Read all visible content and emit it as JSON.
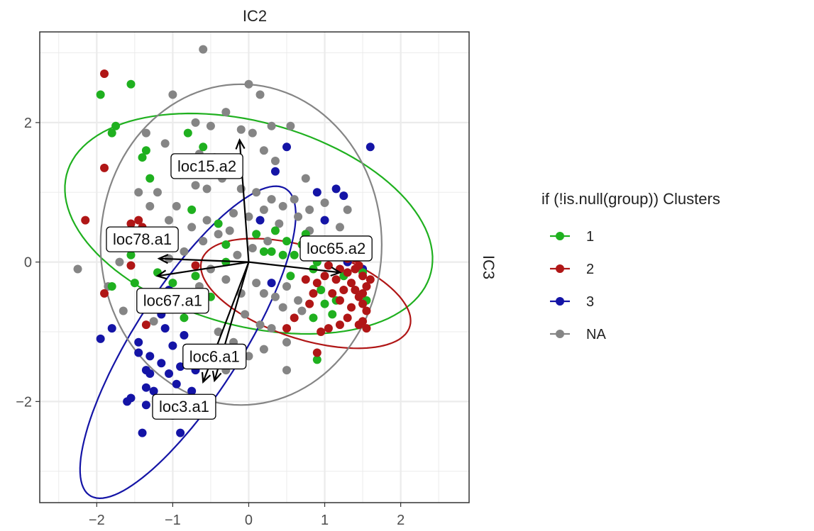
{
  "chart_data": {
    "type": "scatter",
    "title": "",
    "xlabel": "IC2",
    "ylabel": "IC3",
    "xlim": [
      -2.75,
      2.9
    ],
    "ylim": [
      -3.45,
      3.3
    ],
    "x_ticks": [
      -2,
      -1,
      0,
      1,
      2
    ],
    "y_ticks": [
      -2,
      0,
      2
    ],
    "grid": true,
    "legend": {
      "title": "if (!is.null(group)) Clusters",
      "position": "right",
      "entries": [
        {
          "label": "1",
          "color": "#1fb01f"
        },
        {
          "label": "2",
          "color": "#b01616"
        },
        {
          "label": "3",
          "color": "#1414a6"
        },
        {
          "label": "NA",
          "color": "#858585"
        }
      ]
    },
    "series": [
      {
        "name": "1",
        "color": "#1fb01f",
        "points": [
          [
            -1.95,
            2.4
          ],
          [
            -1.8,
            1.85
          ],
          [
            -1.75,
            1.95
          ],
          [
            -1.55,
            2.55
          ],
          [
            -1.35,
            1.6
          ],
          [
            -1.3,
            1.2
          ],
          [
            -1.4,
            1.5
          ],
          [
            -0.8,
            1.85
          ],
          [
            -0.6,
            1.65
          ],
          [
            -0.5,
            1.3
          ],
          [
            -0.9,
            1.25
          ],
          [
            -0.75,
            0.75
          ],
          [
            -1.0,
            0.3
          ],
          [
            -0.7,
            -0.2
          ],
          [
            -0.4,
            0.55
          ],
          [
            -0.3,
            0.25
          ],
          [
            0.1,
            0.4
          ],
          [
            0.3,
            0.15
          ],
          [
            0.45,
            0.1
          ],
          [
            0.5,
            0.3
          ],
          [
            0.7,
            0.25
          ],
          [
            0.8,
            0.25
          ],
          [
            0.6,
            0.1
          ],
          [
            0.9,
            0.0
          ],
          [
            0.85,
            -0.1
          ],
          [
            0.95,
            -0.4
          ],
          [
            1.0,
            -0.6
          ],
          [
            1.1,
            -0.75
          ],
          [
            1.15,
            -0.55
          ],
          [
            0.85,
            -0.8
          ],
          [
            0.9,
            -1.4
          ],
          [
            1.5,
            -0.15
          ],
          [
            1.55,
            -0.55
          ],
          [
            1.25,
            -0.2
          ],
          [
            -0.85,
            -0.8
          ],
          [
            -1.0,
            -0.3
          ],
          [
            -1.5,
            -0.3
          ],
          [
            -1.8,
            -0.35
          ],
          [
            -0.5,
            -0.5
          ],
          [
            -0.3,
            0.0
          ],
          [
            0.55,
            -0.2
          ],
          [
            0.35,
            0.45
          ],
          [
            0.75,
            0.4
          ],
          [
            -1.2,
            -0.15
          ],
          [
            -1.55,
            0.1
          ],
          [
            0.2,
            0.15
          ]
        ]
      },
      {
        "name": "2",
        "color": "#b01616",
        "points": [
          [
            -1.9,
            2.7
          ],
          [
            -1.9,
            1.35
          ],
          [
            -2.15,
            0.6
          ],
          [
            -1.55,
            0.55
          ],
          [
            -1.45,
            0.6
          ],
          [
            -1.4,
            0.5
          ],
          [
            -1.35,
            -0.9
          ],
          [
            -1.9,
            -0.45
          ],
          [
            -1.55,
            -0.05
          ],
          [
            -1.5,
            0.45
          ],
          [
            -0.7,
            -0.05
          ],
          [
            1.2,
            -0.1
          ],
          [
            1.3,
            -0.15
          ],
          [
            1.35,
            -0.3
          ],
          [
            1.4,
            -0.4
          ],
          [
            1.45,
            -0.05
          ],
          [
            1.5,
            -0.2
          ],
          [
            1.55,
            -0.35
          ],
          [
            1.25,
            -0.4
          ],
          [
            1.15,
            -0.25
          ],
          [
            1.3,
            0.05
          ],
          [
            1.4,
            0.05
          ],
          [
            1.45,
            -0.5
          ],
          [
            1.5,
            -0.6
          ],
          [
            1.55,
            -0.7
          ],
          [
            1.35,
            -0.65
          ],
          [
            1.2,
            -0.55
          ],
          [
            1.6,
            -0.25
          ],
          [
            1.1,
            -0.45
          ],
          [
            1.3,
            -0.8
          ],
          [
            1.45,
            -0.9
          ],
          [
            1.5,
            -0.85
          ],
          [
            1.05,
            -0.95
          ],
          [
            0.95,
            -1.0
          ],
          [
            0.6,
            -0.8
          ],
          [
            0.8,
            -0.6
          ],
          [
            0.85,
            -0.45
          ],
          [
            0.9,
            -0.3
          ],
          [
            1.0,
            -0.2
          ],
          [
            1.05,
            -0.05
          ],
          [
            0.75,
            -0.25
          ],
          [
            0.5,
            -0.95
          ],
          [
            0.9,
            -1.3
          ],
          [
            1.2,
            -0.9
          ],
          [
            1.55,
            -0.95
          ],
          [
            1.4,
            -0.1
          ],
          [
            1.5,
            -0.45
          ]
        ]
      },
      {
        "name": "3",
        "color": "#1414a6",
        "points": [
          [
            -1.4,
            -0.45
          ],
          [
            -1.95,
            -1.1
          ],
          [
            -1.8,
            -0.95
          ],
          [
            -1.05,
            -0.4
          ],
          [
            -1.1,
            -0.95
          ],
          [
            -1.0,
            -1.2
          ],
          [
            -1.15,
            -1.45
          ],
          [
            -1.3,
            -1.35
          ],
          [
            -1.45,
            -1.15
          ],
          [
            -1.45,
            -1.3
          ],
          [
            -1.35,
            -1.55
          ],
          [
            -1.3,
            -1.6
          ],
          [
            -1.35,
            -1.8
          ],
          [
            -1.35,
            -2.05
          ],
          [
            -1.55,
            -1.95
          ],
          [
            -1.6,
            -2.0
          ],
          [
            -1.4,
            -2.45
          ],
          [
            -1.05,
            -1.6
          ],
          [
            -0.9,
            -1.5
          ],
          [
            -0.95,
            -1.75
          ],
          [
            -1.0,
            -2.2
          ],
          [
            -1.05,
            -2.1
          ],
          [
            -0.9,
            -2.45
          ],
          [
            -0.75,
            -1.85
          ],
          [
            -0.7,
            -1.55
          ],
          [
            -0.85,
            -1.05
          ],
          [
            -1.15,
            -0.75
          ],
          [
            -1.2,
            -2.05
          ],
          [
            -0.8,
            -2.1
          ],
          [
            1.0,
            0.6
          ],
          [
            1.15,
            1.05
          ],
          [
            1.25,
            0.95
          ],
          [
            1.4,
            0.1
          ],
          [
            1.3,
            0.0
          ],
          [
            1.5,
            -0.1
          ],
          [
            1.6,
            1.65
          ],
          [
            0.5,
            1.65
          ],
          [
            0.35,
            1.3
          ],
          [
            -1.25,
            -1.85
          ],
          [
            0.15,
            0.6
          ],
          [
            0.3,
            -0.3
          ],
          [
            0.9,
            1.0
          ],
          [
            -0.25,
            1.4
          ]
        ]
      },
      {
        "name": "NA",
        "color": "#858585",
        "points": [
          [
            -0.6,
            3.05
          ],
          [
            0.0,
            2.55
          ],
          [
            0.15,
            2.4
          ],
          [
            -1.0,
            2.4
          ],
          [
            -0.7,
            2.0
          ],
          [
            -0.5,
            1.95
          ],
          [
            -0.3,
            2.15
          ],
          [
            -0.1,
            1.9
          ],
          [
            0.05,
            1.85
          ],
          [
            0.2,
            1.6
          ],
          [
            0.3,
            1.95
          ],
          [
            0.55,
            1.95
          ],
          [
            -1.35,
            1.85
          ],
          [
            -1.1,
            1.7
          ],
          [
            -0.9,
            1.45
          ],
          [
            -0.7,
            1.1
          ],
          [
            -0.8,
            1.3
          ],
          [
            -0.55,
            1.05
          ],
          [
            -0.35,
            1.2
          ],
          [
            -0.1,
            1.05
          ],
          [
            0.1,
            1.0
          ],
          [
            0.3,
            0.9
          ],
          [
            0.45,
            0.8
          ],
          [
            0.6,
            0.9
          ],
          [
            0.8,
            0.75
          ],
          [
            1.0,
            0.85
          ],
          [
            0.2,
            0.75
          ],
          [
            0.0,
            0.65
          ],
          [
            -0.2,
            0.7
          ],
          [
            -0.4,
            0.4
          ],
          [
            -0.55,
            0.6
          ],
          [
            -0.75,
            0.5
          ],
          [
            -0.95,
            0.8
          ],
          [
            -1.2,
            1.0
          ],
          [
            -1.3,
            0.8
          ],
          [
            -1.5,
            0.3
          ],
          [
            -1.7,
            0.0
          ],
          [
            -1.85,
            -0.35
          ],
          [
            -2.25,
            -0.1
          ],
          [
            -1.65,
            -0.7
          ],
          [
            -1.25,
            -0.85
          ],
          [
            -0.5,
            -0.1
          ],
          [
            -0.3,
            -0.25
          ],
          [
            -0.1,
            -0.45
          ],
          [
            0.1,
            -0.3
          ],
          [
            0.2,
            -0.45
          ],
          [
            0.35,
            -0.5
          ],
          [
            0.45,
            -0.65
          ],
          [
            0.5,
            -0.35
          ],
          [
            0.65,
            -0.55
          ],
          [
            0.7,
            -0.7
          ],
          [
            -0.05,
            -0.75
          ],
          [
            0.15,
            -0.9
          ],
          [
            0.3,
            -0.95
          ],
          [
            0.5,
            -1.15
          ],
          [
            -0.4,
            -1.0
          ],
          [
            -0.2,
            -1.15
          ],
          [
            0.0,
            -1.35
          ],
          [
            0.2,
            -1.25
          ],
          [
            0.5,
            -1.55
          ],
          [
            -0.3,
            -1.55
          ],
          [
            -0.15,
            0.1
          ],
          [
            0.05,
            0.2
          ],
          [
            0.25,
            0.3
          ],
          [
            0.4,
            0.55
          ],
          [
            -0.25,
            0.45
          ],
          [
            -0.6,
            0.3
          ],
          [
            -0.85,
            0.15
          ],
          [
            -1.05,
            0.05
          ],
          [
            -1.4,
            -0.55
          ],
          [
            -0.65,
            -0.35
          ],
          [
            1.1,
            0.3
          ],
          [
            1.2,
            0.5
          ],
          [
            1.3,
            0.75
          ],
          [
            0.8,
            0.45
          ],
          [
            0.65,
            0.65
          ],
          [
            -0.65,
            1.55
          ],
          [
            -0.45,
            1.5
          ],
          [
            0.35,
            1.45
          ],
          [
            0.75,
            1.2
          ],
          [
            -1.05,
            0.6
          ],
          [
            -1.45,
            1.0
          ]
        ]
      }
    ],
    "ellipses": [
      {
        "group": "1",
        "color": "#1fb01f",
        "cx": 0.0,
        "cy": 0.55,
        "rx": 2.5,
        "ry": 1.45,
        "angle_deg": -18
      },
      {
        "group": "2",
        "color": "#b01616",
        "cx": 0.75,
        "cy": -0.45,
        "rx": 1.45,
        "ry": 0.65,
        "angle_deg": -20
      },
      {
        "group": "3",
        "color": "#1414a6",
        "cx": -0.8,
        "cy": -1.15,
        "rx": 2.55,
        "ry": 0.72,
        "angle_deg": 60
      },
      {
        "group": "NA",
        "color": "#858585",
        "cx": -0.1,
        "cy": 0.25,
        "rx": 1.85,
        "ry": 2.3,
        "angle_deg": 0
      }
    ],
    "loadings": [
      {
        "label": "loc15.a2",
        "x": -0.12,
        "y": 1.75,
        "label_x": -0.55,
        "label_y": 1.38
      },
      {
        "label": "loc78.a1",
        "x": -1.18,
        "y": 0.05,
        "label_x": -1.4,
        "label_y": 0.33
      },
      {
        "label": "loc65.a2",
        "x": 1.2,
        "y": -0.15,
        "label_x": 1.15,
        "label_y": 0.2
      },
      {
        "label": "loc67.a1",
        "x": -1.2,
        "y": -0.2,
        "label_x": -1.0,
        "label_y": -0.55
      },
      {
        "label": "loc6.a1",
        "x": -0.45,
        "y": -1.7,
        "label_x": -0.45,
        "label_y": -1.35
      },
      {
        "label": "loc3.a1",
        "x": -0.6,
        "y": -1.72,
        "label_x": -0.85,
        "label_y": -2.07
      }
    ]
  }
}
